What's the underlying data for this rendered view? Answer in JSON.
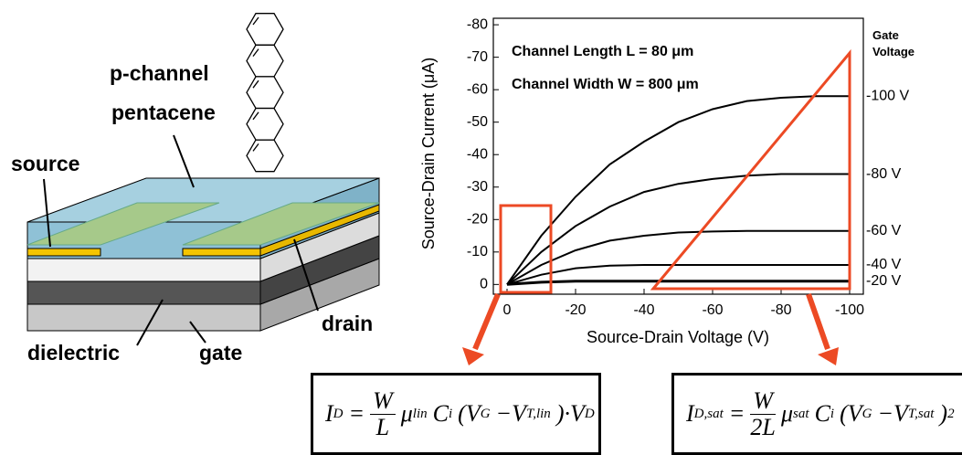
{
  "chart_data": {
    "type": "line",
    "x_label": "Source-Drain Voltage (V)",
    "y_label": "Source-Drain Current (μA)",
    "annotations": [
      "Channel Length L = 80 μm",
      "Channel Width W = 800 μm"
    ],
    "legend_title": "Gate Voltage",
    "x": [
      0,
      -10,
      -20,
      -30,
      -40,
      -50,
      -60,
      -70,
      -80,
      -90,
      -100
    ],
    "series": [
      {
        "name": "-100 V",
        "color": "#000000",
        "values": [
          0,
          -15,
          -27,
          -37,
          -44,
          -50,
          -54,
          -56.5,
          -57.5,
          -58,
          -58
        ]
      },
      {
        "name": "-80 V",
        "color": "#000000",
        "values": [
          0,
          -10,
          -18,
          -24,
          -28.5,
          -31,
          -32.5,
          -33.5,
          -34,
          -34,
          -34
        ]
      },
      {
        "name": "-60 V",
        "color": "#000000",
        "values": [
          0,
          -6,
          -10.5,
          -13.5,
          -15,
          -16,
          -16.3,
          -16.5,
          -16.5,
          -16.5,
          -16.5
        ]
      },
      {
        "name": "-40 V",
        "color": "#000000",
        "values": [
          0,
          -3,
          -5,
          -5.8,
          -6,
          -6,
          -6,
          -6,
          -6,
          -6,
          -6
        ]
      },
      {
        "name": "-20 V",
        "color": "#000000",
        "values": [
          0,
          -0.7,
          -1,
          -1,
          -1,
          -1,
          -1,
          -1,
          -1,
          -1,
          -1
        ]
      }
    ],
    "xlim": [
      4,
      -104
    ],
    "ylim": [
      3,
      -82
    ],
    "xticks": [
      0,
      -20,
      -40,
      -60,
      -80,
      -100
    ],
    "yticks": [
      0,
      -10,
      -20,
      -30,
      -40,
      -50,
      -60,
      -70,
      -80
    ]
  },
  "device_labels": [
    "p-channel",
    "pentacene",
    "source",
    "drain",
    "dielectric",
    "gate"
  ],
  "equations": [
    [
      {
        "t": "I",
        "sub": "D"
      },
      {
        "t": "="
      },
      {
        "num": "W",
        "den": "L"
      },
      {
        "t": "μ",
        "sub": "lin"
      },
      {
        "t": "C",
        "sub": "i"
      },
      {
        "t": "(V",
        "sub": "G"
      },
      {
        "t": "−V",
        "sub": "T,lin"
      },
      {
        "t": ")·V",
        "sub": "D"
      }
    ],
    [
      {
        "t": "I",
        "sub": "D,sat"
      },
      {
        "t": "="
      },
      {
        "num": "W",
        "den": "2L"
      },
      {
        "t": "μ",
        "sub": "sat"
      },
      {
        "t": "C",
        "sub": "i"
      },
      {
        "t": "(V",
        "sub": "G"
      },
      {
        "t": "−V",
        "sub": "T,sat"
      },
      {
        "t": ")",
        "sup": "2"
      }
    ]
  ]
}
